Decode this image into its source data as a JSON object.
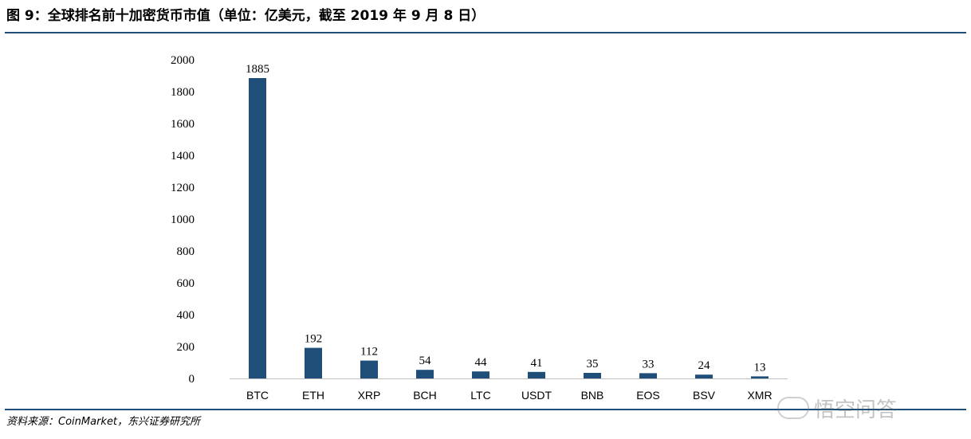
{
  "header": {
    "title": "图 9：全球排名前十加密货币市值（单位：亿美元，截至 2019 年 9 月 8 日）"
  },
  "footer": {
    "source": "资料来源：CoinMarket，东兴证券研究所"
  },
  "watermark": {
    "text": "悟空问答",
    "icon": "speech-bubble-icon"
  },
  "colors": {
    "bar": "#1f4e79",
    "rule": "#1f4e79"
  },
  "chart_data": {
    "type": "bar",
    "title": "",
    "xlabel": "",
    "ylabel": "",
    "categories": [
      "BTC",
      "ETH",
      "XRP",
      "BCH",
      "LTC",
      "USDT",
      "BNB",
      "EOS",
      "BSV",
      "XMR"
    ],
    "values": [
      1885,
      192,
      112,
      54,
      44,
      41,
      35,
      33,
      24,
      13
    ],
    "ylim": [
      0,
      2000
    ],
    "yticks": [
      0,
      200,
      400,
      600,
      800,
      1000,
      1200,
      1400,
      1600,
      1800,
      2000
    ],
    "grid": false,
    "legend": "none",
    "data_labels": true
  }
}
